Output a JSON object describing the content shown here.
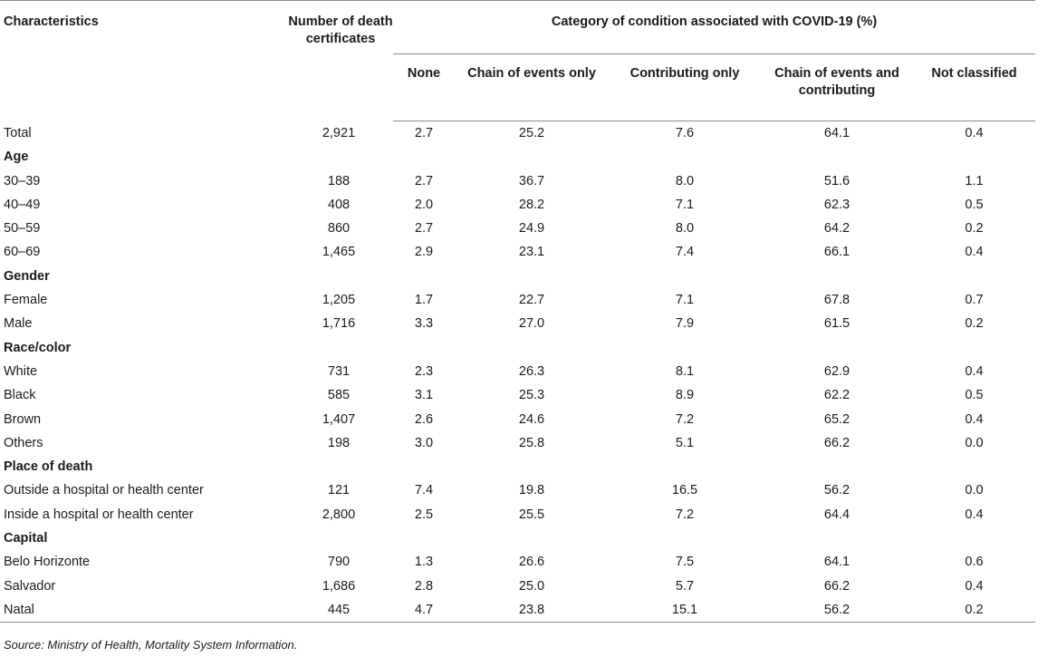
{
  "table": {
    "headers": {
      "characteristics": "Characteristics",
      "number_of_death_certificates": "Number of death certificates",
      "category_group": "Category of condition associated with COVID-19 (%)",
      "categories": [
        "None",
        "Chain of events only",
        "Contributing only",
        "Chain of events and contributing",
        "Not classified"
      ]
    },
    "rows": [
      {
        "type": "data",
        "label": "Total",
        "values": [
          "2,921",
          "2.7",
          "25.2",
          "7.6",
          "64.1",
          "0.4"
        ]
      },
      {
        "type": "group",
        "label": "Age"
      },
      {
        "type": "data",
        "label": "30–39",
        "values": [
          "188",
          "2.7",
          "36.7",
          "8.0",
          "51.6",
          "1.1"
        ]
      },
      {
        "type": "data",
        "label": "40–49",
        "values": [
          "408",
          "2.0",
          "28.2",
          "7.1",
          "62.3",
          "0.5"
        ]
      },
      {
        "type": "data",
        "label": "50–59",
        "values": [
          "860",
          "2.7",
          "24.9",
          "8.0",
          "64.2",
          "0.2"
        ]
      },
      {
        "type": "data",
        "label": "60–69",
        "values": [
          "1,465",
          "2.9",
          "23.1",
          "7.4",
          "66.1",
          "0.4"
        ]
      },
      {
        "type": "group",
        "label": "Gender"
      },
      {
        "type": "data",
        "label": "Female",
        "values": [
          "1,205",
          "1.7",
          "22.7",
          "7.1",
          "67.8",
          "0.7"
        ]
      },
      {
        "type": "data",
        "label": "Male",
        "values": [
          "1,716",
          "3.3",
          "27.0",
          "7.9",
          "61.5",
          "0.2"
        ]
      },
      {
        "type": "group",
        "label": "Race/color"
      },
      {
        "type": "data",
        "label": "White",
        "values": [
          "731",
          "2.3",
          "26.3",
          "8.1",
          "62.9",
          "0.4"
        ]
      },
      {
        "type": "data",
        "label": "Black",
        "values": [
          "585",
          "3.1",
          "25.3",
          "8.9",
          "62.2",
          "0.5"
        ]
      },
      {
        "type": "data",
        "label": "Brown",
        "values": [
          "1,407",
          "2.6",
          "24.6",
          "7.2",
          "65.2",
          "0.4"
        ]
      },
      {
        "type": "data",
        "label": "Others",
        "values": [
          "198",
          "3.0",
          "25.8",
          "5.1",
          "66.2",
          "0.0"
        ]
      },
      {
        "type": "group",
        "label": "Place of death"
      },
      {
        "type": "data",
        "label": "Outside a hospital or health center",
        "values": [
          "121",
          "7.4",
          "19.8",
          "16.5",
          "56.2",
          "0.0"
        ]
      },
      {
        "type": "data",
        "label": "Inside a hospital or health center",
        "values": [
          "2,800",
          "2.5",
          "25.5",
          "7.2",
          "64.4",
          "0.4"
        ]
      },
      {
        "type": "group",
        "label": "Capital"
      },
      {
        "type": "data",
        "label": "Belo Horizonte",
        "values": [
          "790",
          "1.3",
          "26.6",
          "7.5",
          "64.1",
          "0.6"
        ]
      },
      {
        "type": "data",
        "label": "Salvador",
        "values": [
          "1,686",
          "2.8",
          "25.0",
          "5.7",
          "66.2",
          "0.4"
        ]
      },
      {
        "type": "data",
        "label": "Natal",
        "values": [
          "445",
          "4.7",
          "23.8",
          "15.1",
          "56.2",
          "0.2"
        ]
      }
    ]
  },
  "source": "Source: Ministry of Health, Mortality System Information."
}
